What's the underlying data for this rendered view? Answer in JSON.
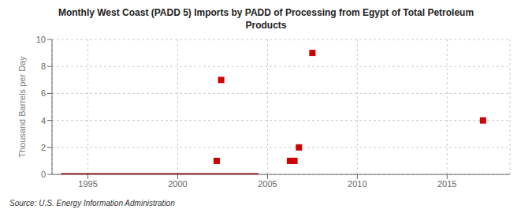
{
  "chart_data": {
    "type": "scatter",
    "title": "Monthly West Coast (PADD 5) Imports by PADD of Processing from Egypt of Total Petroleum\nProducts",
    "ylabel": "Thousand Barrels per Day",
    "source": "Source: U.S. Energy Information Administration",
    "xlim": [
      1993.0,
      2018.5
    ],
    "ylim": [
      0,
      10
    ],
    "xticks": [
      1995,
      2000,
      2005,
      2010,
      2015
    ],
    "yticks": [
      0,
      2,
      4,
      6,
      8,
      10
    ],
    "grid": true,
    "series": [
      {
        "type": "line",
        "color": "#8b0000",
        "x": [
          1993.5,
          2004.5
        ],
        "values": [
          0,
          0
        ]
      },
      {
        "type": "scatter",
        "color": "#cc0000",
        "marker": "square",
        "x": [
          2002.17,
          2002.42,
          2006.25,
          2006.5,
          2006.75,
          2007.5,
          2017.0
        ],
        "values": [
          1,
          7,
          1,
          1,
          2,
          9,
          4
        ]
      }
    ]
  }
}
